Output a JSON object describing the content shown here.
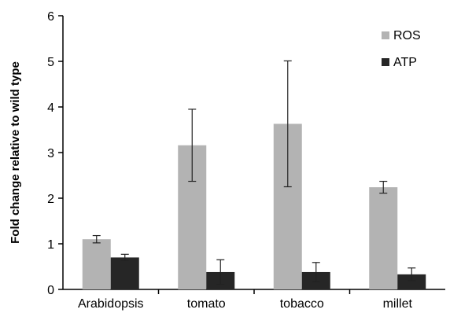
{
  "chart_data": {
    "type": "bar",
    "title": "",
    "xlabel": "",
    "ylabel": "Fold change relative to wild type",
    "ylim": [
      0,
      6
    ],
    "yticks": [
      0,
      1,
      2,
      3,
      4,
      5,
      6
    ],
    "grid": false,
    "legend_position": "top-right",
    "categories": [
      "Arabidopsis",
      "tomato",
      "tobacco",
      "millet"
    ],
    "series": [
      {
        "name": "ROS",
        "color": "#b3b3b3",
        "values": [
          1.1,
          3.16,
          3.63,
          2.24
        ],
        "errors": [
          0.08,
          0.79,
          1.38,
          0.13
        ]
      },
      {
        "name": "ATP",
        "color": "#262626",
        "values": [
          0.7,
          0.38,
          0.38,
          0.33
        ],
        "errors": [
          0.07,
          0.27,
          0.21,
          0.14
        ]
      }
    ]
  }
}
